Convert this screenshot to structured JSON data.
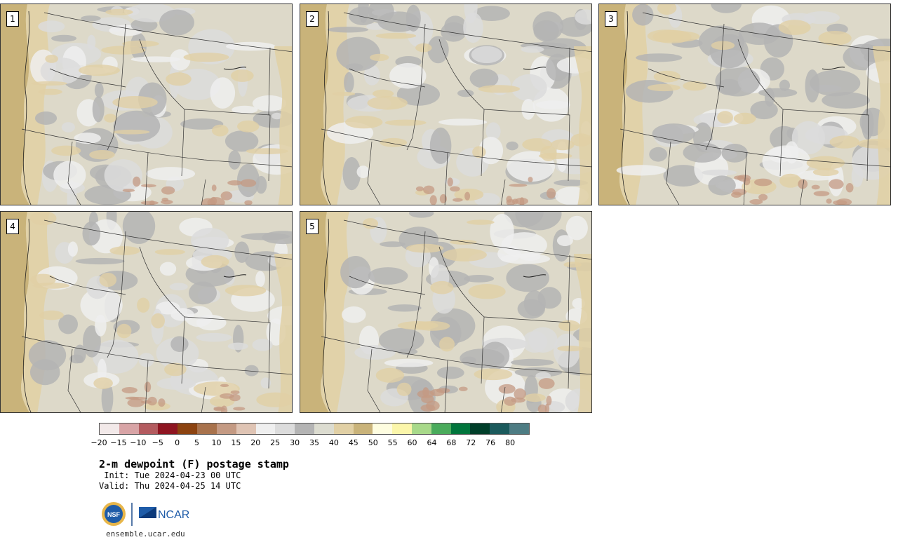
{
  "panels": [
    {
      "label": "1"
    },
    {
      "label": "2"
    },
    {
      "label": "3"
    },
    {
      "label": "4"
    },
    {
      "label": "5"
    }
  ],
  "colorbar": {
    "colors": [
      "#f2e9e9",
      "#d8a4a6",
      "#b35b5f",
      "#8e1521",
      "#8c4310",
      "#a8724c",
      "#c49a83",
      "#dfc4b4",
      "#efefef",
      "#dcdcdc",
      "#b4b4b4",
      "#dcdcd0",
      "#e1d0a5",
      "#c9b37a",
      "#fefde0",
      "#fbf6aa",
      "#a8d98a",
      "#4aab5c",
      "#00753c",
      "#003f2a",
      "#1b5a5c",
      "#4d7c83"
    ],
    "tick_labels": [
      "−20",
      "−15",
      "−10",
      "−5",
      "0",
      "5",
      "10",
      "15",
      "20",
      "25",
      "30",
      "35",
      "40",
      "45",
      "50",
      "55",
      "60",
      "64",
      "68",
      "72",
      "76",
      "80"
    ]
  },
  "title": "2-m dewpoint (F) postage stamp",
  "init": " Init: Tue 2024-04-23 00 UTC",
  "valid": "Valid: Thu 2024-04-25 14 UTC",
  "logos": {
    "nsf": "NSF",
    "ncar": "NCAR"
  },
  "url": "ensemble.ucar.edu"
}
